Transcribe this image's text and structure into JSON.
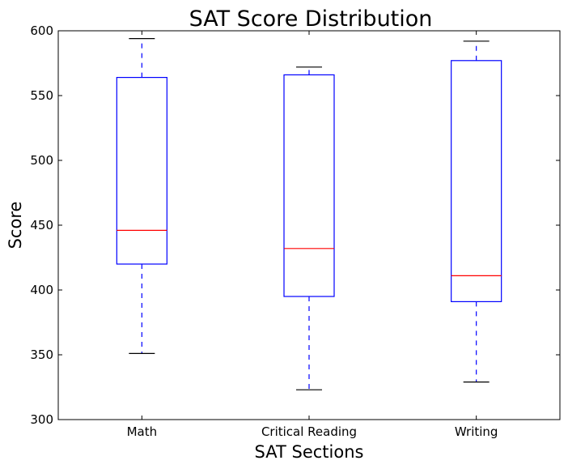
{
  "chart_data": {
    "type": "boxplot",
    "title": "SAT Score Distribution",
    "xlabel": "SAT Sections",
    "ylabel": "Score",
    "ylim": [
      300,
      600
    ],
    "yticks": [
      300,
      350,
      400,
      450,
      500,
      550,
      600
    ],
    "ytick_labels": [
      "300",
      "350",
      "400",
      "450",
      "500",
      "550",
      "600"
    ],
    "categories": [
      "Math",
      "Critical Reading",
      "Writing"
    ],
    "boxes": [
      {
        "label": "Math",
        "whisker_low": 351,
        "q1": 420,
        "median": 446,
        "q3": 564,
        "whisker_high": 594
      },
      {
        "label": "Critical Reading",
        "whisker_low": 323,
        "q1": 395,
        "median": 432,
        "q3": 566,
        "whisker_high": 572
      },
      {
        "label": "Writing",
        "whisker_low": 329,
        "q1": 391,
        "median": 411,
        "q3": 577,
        "whisker_high": 592
      }
    ],
    "colors": {
      "box": "#0000ff",
      "whisker": "#0000ff",
      "median": "#ff0000",
      "cap": "#000000",
      "frame": "#000000"
    },
    "grid": false,
    "legend": "none"
  }
}
